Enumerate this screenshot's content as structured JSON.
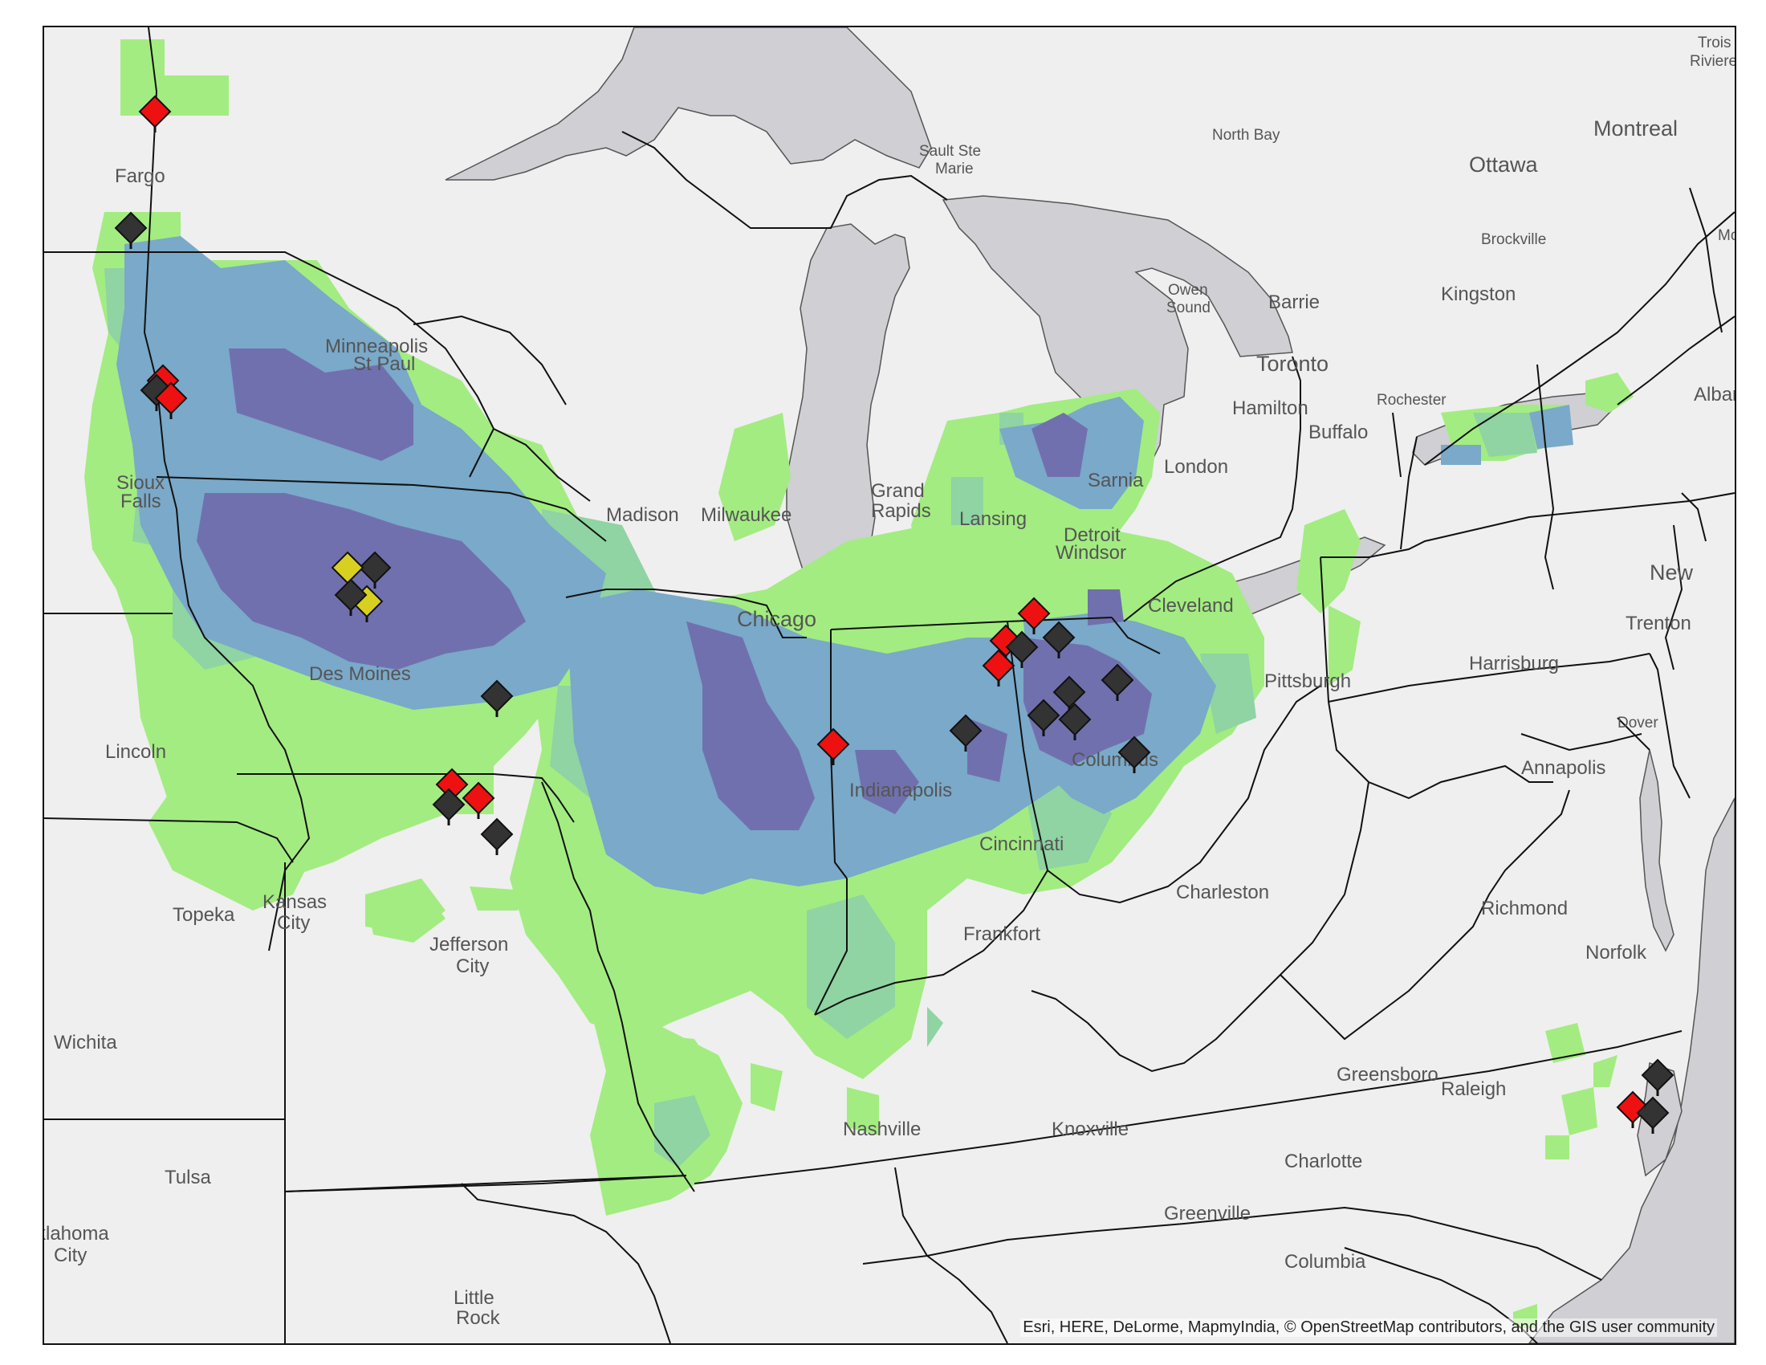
{
  "map": {
    "attribution": "Esri, HERE, DeLorme, MapmyIndia, © OpenStreetMap contributors, and the GIS user community",
    "colors": {
      "land": "#efefef",
      "water": "#cfcfd4",
      "border": "#111111",
      "class_low": "#a3ec81",
      "class_mid_low": "#8fd4a2",
      "class_mid_high": "#7aa9c9",
      "class_high": "#7170ae",
      "marker_red": "#ee1111",
      "marker_black": "#333333",
      "marker_yellow": "#d8d020"
    },
    "cities": [
      {
        "name": "Fargo"
      },
      {
        "name": "Minneapolis"
      },
      {
        "name": "St Paul"
      },
      {
        "name": "Sioux"
      },
      {
        "name": "Falls"
      },
      {
        "name": "Des Moines"
      },
      {
        "name": "Lincoln"
      },
      {
        "name": "Topeka"
      },
      {
        "name": "Kansas"
      },
      {
        "name": "City"
      },
      {
        "name": "Jefferson"
      },
      {
        "name": "City"
      },
      {
        "name": "Wichita"
      },
      {
        "name": "Tulsa"
      },
      {
        "name": "klahoma"
      },
      {
        "name": "City"
      },
      {
        "name": "Little"
      },
      {
        "name": "Rock"
      },
      {
        "name": "Madison"
      },
      {
        "name": "Milwaukee"
      },
      {
        "name": "Chicago"
      },
      {
        "name": "Grand"
      },
      {
        "name": "Rapids"
      },
      {
        "name": "Lansing"
      },
      {
        "name": "Detroit"
      },
      {
        "name": "Windsor"
      },
      {
        "name": "Sarnia"
      },
      {
        "name": "London"
      },
      {
        "name": "Cleveland"
      },
      {
        "name": "Pittsburgh"
      },
      {
        "name": "Columbus"
      },
      {
        "name": "Indianapolis"
      },
      {
        "name": "Cincinnati"
      },
      {
        "name": "Frankfort"
      },
      {
        "name": "Charleston"
      },
      {
        "name": "Nashville"
      },
      {
        "name": "Knoxville"
      },
      {
        "name": "Greensboro"
      },
      {
        "name": "Raleigh"
      },
      {
        "name": "Charlotte"
      },
      {
        "name": "Greenville"
      },
      {
        "name": "Columbia"
      },
      {
        "name": "Richmond"
      },
      {
        "name": "Norfolk"
      },
      {
        "name": "Annapolis"
      },
      {
        "name": "Dover"
      },
      {
        "name": "Harrisburg"
      },
      {
        "name": "Trenton"
      },
      {
        "name": "New"
      },
      {
        "name": "Toronto"
      },
      {
        "name": "Hamilton"
      },
      {
        "name": "Buffalo"
      },
      {
        "name": "Rochester"
      },
      {
        "name": "Kingston"
      },
      {
        "name": "Brockville"
      },
      {
        "name": "Ottawa"
      },
      {
        "name": "Montreal"
      },
      {
        "name": "North Bay"
      },
      {
        "name": "Owen"
      },
      {
        "name": "Sound"
      },
      {
        "name": "Barrie"
      },
      {
        "name": "Sault Ste"
      },
      {
        "name": "Marie"
      },
      {
        "name": "Albany"
      },
      {
        "name": "Trois"
      },
      {
        "name": "Riviere"
      },
      {
        "name": "Mo"
      }
    ],
    "markers": [
      {
        "color": "red"
      },
      {
        "color": "black"
      },
      {
        "color": "red"
      },
      {
        "color": "black"
      },
      {
        "color": "red"
      },
      {
        "color": "black"
      },
      {
        "color": "yellow"
      },
      {
        "color": "yellow"
      },
      {
        "color": "black"
      },
      {
        "color": "black"
      },
      {
        "color": "red"
      },
      {
        "color": "black"
      },
      {
        "color": "red"
      },
      {
        "color": "black"
      },
      {
        "color": "red"
      },
      {
        "color": "black"
      },
      {
        "color": "red"
      },
      {
        "color": "red"
      },
      {
        "color": "black"
      },
      {
        "color": "black"
      },
      {
        "color": "red"
      },
      {
        "color": "black"
      },
      {
        "color": "black"
      },
      {
        "color": "black"
      },
      {
        "color": "black"
      },
      {
        "color": "black"
      },
      {
        "color": "black"
      },
      {
        "color": "red"
      },
      {
        "color": "black"
      }
    ]
  }
}
